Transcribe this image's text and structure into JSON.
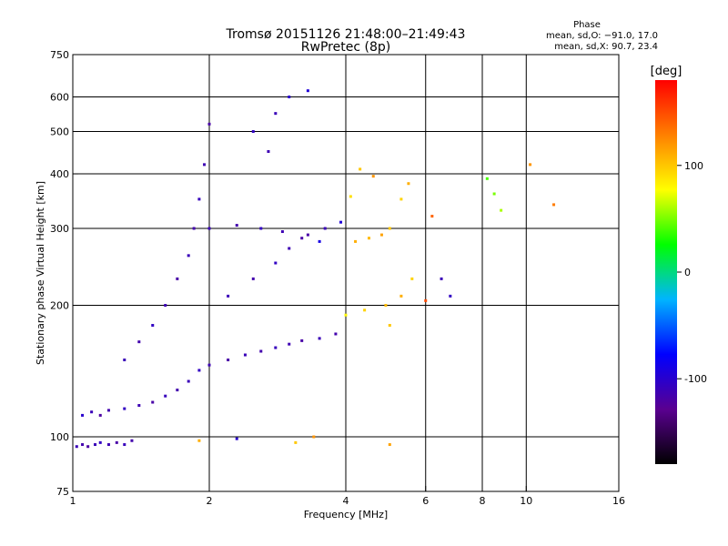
{
  "chart_data": {
    "type": "scatter",
    "title": "Tromsø 20151126 21:48:00–21:49:43",
    "subtitle": "RwPretec (8p)",
    "xlabel": "Frequency [MHz]",
    "ylabel": "Stationary phase Virtual Height [km]",
    "x_scale": "log",
    "y_scale": "log",
    "xlim": [
      1,
      16
    ],
    "ylim": [
      75,
      750
    ],
    "x_ticks": [
      1,
      2,
      4,
      6,
      8,
      10,
      16
    ],
    "y_ticks": [
      75,
      100,
      200,
      300,
      400,
      500,
      600,
      750
    ],
    "grid_x": [
      2,
      4,
      6,
      8,
      10
    ],
    "grid_y": [
      100,
      200,
      300,
      400,
      500,
      600
    ],
    "stats_title": "Phase",
    "stats_lines": [
      "mean, sd,O: −91.0, 17.0",
      "mean, sd,X: 90.7, 23.4"
    ],
    "colorbar": {
      "label": "[deg]",
      "range": [
        -180,
        180
      ],
      "ticks": [
        100,
        0,
        -100
      ],
      "colors": [
        "#000000",
        "#5a0090",
        "#0000ff",
        "#00b4ff",
        "#00ff00",
        "#ffff00",
        "#ff8000",
        "#ff0000"
      ]
    },
    "series": [
      {
        "points": [
          [
            1.02,
            95,
            -110
          ],
          [
            1.05,
            96,
            -115
          ],
          [
            1.08,
            95,
            -120
          ],
          [
            1.12,
            96,
            -110
          ],
          [
            1.15,
            97,
            -105
          ],
          [
            1.2,
            96,
            -112
          ],
          [
            1.25,
            97,
            -118
          ],
          [
            1.3,
            96,
            -108
          ],
          [
            1.35,
            98,
            -115
          ],
          [
            1.05,
            112,
            -100
          ],
          [
            1.1,
            114,
            -110
          ],
          [
            1.15,
            112,
            -120
          ],
          [
            1.2,
            115,
            -115
          ],
          [
            1.3,
            116,
            -105
          ],
          [
            1.4,
            118,
            -112
          ],
          [
            1.5,
            120,
            -118
          ],
          [
            1.6,
            124,
            -108
          ],
          [
            1.7,
            128,
            -115
          ],
          [
            1.8,
            134,
            -110
          ],
          [
            1.9,
            142,
            -105
          ],
          [
            2.0,
            146,
            -112
          ],
          [
            2.2,
            150,
            -118
          ],
          [
            2.4,
            154,
            -110
          ],
          [
            2.6,
            157,
            -115
          ],
          [
            2.8,
            160,
            -108
          ],
          [
            3.0,
            163,
            -112
          ],
          [
            3.2,
            166,
            -118
          ],
          [
            3.5,
            168,
            -110
          ],
          [
            3.8,
            172,
            -115
          ],
          [
            1.3,
            150,
            -110
          ],
          [
            1.4,
            165,
            -115
          ],
          [
            1.5,
            180,
            -105
          ],
          [
            1.6,
            200,
            -112
          ],
          [
            1.7,
            230,
            -118
          ],
          [
            1.8,
            260,
            -110
          ],
          [
            1.85,
            300,
            -115
          ],
          [
            1.9,
            350,
            -108
          ],
          [
            1.95,
            420,
            -112
          ],
          [
            2.0,
            520,
            -118
          ],
          [
            2.2,
            210,
            -110
          ],
          [
            2.5,
            230,
            -115
          ],
          [
            2.8,
            250,
            -105
          ],
          [
            3.0,
            270,
            -112
          ],
          [
            3.3,
            290,
            -118
          ],
          [
            3.6,
            300,
            -110
          ],
          [
            3.9,
            310,
            -95
          ],
          [
            2.0,
            300,
            -110
          ],
          [
            2.3,
            305,
            -115
          ],
          [
            2.6,
            300,
            -105
          ],
          [
            2.9,
            295,
            -112
          ],
          [
            3.2,
            285,
            -118
          ],
          [
            3.5,
            280,
            -90
          ],
          [
            4.2,
            280,
            110
          ],
          [
            4.5,
            285,
            105
          ],
          [
            4.8,
            290,
            115
          ],
          [
            5.0,
            300,
            100
          ],
          [
            5.3,
            350,
            95
          ],
          [
            5.5,
            380,
            110
          ],
          [
            4.6,
            395,
            120
          ],
          [
            4.3,
            410,
            100
          ],
          [
            4.1,
            355,
            90
          ],
          [
            4.0,
            190,
            80
          ],
          [
            4.4,
            195,
            95
          ],
          [
            4.9,
            200,
            105
          ],
          [
            5.3,
            210,
            110
          ],
          [
            5.6,
            230,
            95
          ],
          [
            5.0,
            180,
            100
          ],
          [
            2.5,
            500,
            -105
          ],
          [
            2.8,
            550,
            -110
          ],
          [
            3.0,
            600,
            -100
          ],
          [
            3.3,
            620,
            -95
          ],
          [
            2.7,
            450,
            -112
          ],
          [
            8.2,
            390,
            40
          ],
          [
            8.5,
            360,
            50
          ],
          [
            8.8,
            330,
            60
          ],
          [
            10.2,
            420,
            120
          ],
          [
            11.5,
            340,
            130
          ],
          [
            1.9,
            98,
            110
          ],
          [
            2.3,
            99,
            -100
          ],
          [
            3.1,
            97,
            100
          ],
          [
            3.4,
            100,
            120
          ],
          [
            5.0,
            96,
            115
          ],
          [
            6.5,
            230,
            -110
          ],
          [
            6.8,
            210,
            -105
          ],
          [
            6.2,
            320,
            140
          ],
          [
            6.0,
            205,
            150
          ]
        ]
      }
    ]
  }
}
